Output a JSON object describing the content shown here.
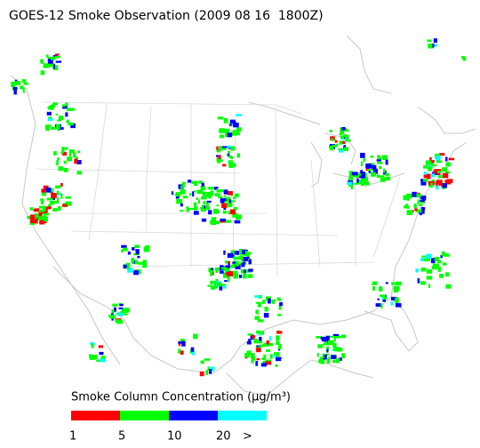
{
  "title": "GOES-12 Smoke Observation (2009 08 16  1800Z)",
  "legend": {
    "title": "Smoke Column Concentration (μg/m³)",
    "colors": [
      "#ff0000",
      "#00ff00",
      "#0000ff",
      "#00ffff"
    ],
    "labels": [
      "1",
      "5",
      "10",
      "20",
      ">"
    ]
  }
}
